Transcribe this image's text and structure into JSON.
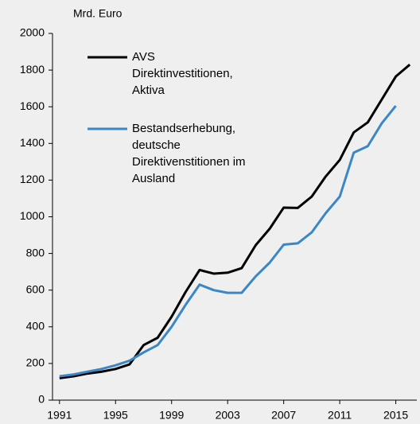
{
  "chart_data": {
    "type": "line",
    "y_label": "Mrd. Euro",
    "x": [
      1991,
      1992,
      1993,
      1994,
      1995,
      1996,
      1997,
      1998,
      1999,
      2000,
      2001,
      2002,
      2003,
      2004,
      2005,
      2006,
      2007,
      2008,
      2009,
      2010,
      2011,
      2012,
      2013,
      2014,
      2015,
      2016
    ],
    "series": [
      {
        "name": "AVS\nDirektinvestitionen,\nAktiva",
        "color": "#000000",
        "values": [
          120,
          130,
          145,
          155,
          170,
          195,
          300,
          340,
          455,
          590,
          710,
          690,
          695,
          720,
          845,
          935,
          1050,
          1048,
          1110,
          1220,
          1310,
          1460,
          1515,
          1640,
          1765,
          1830
        ]
      },
      {
        "name": "Bestandserhebung,\ndeutsche\nDirektivenstitionen im\nAusland",
        "color": "#3a87c8",
        "values": [
          130,
          140,
          155,
          170,
          190,
          215,
          260,
          300,
          400,
          520,
          630,
          600,
          585,
          585,
          675,
          750,
          848,
          855,
          915,
          1020,
          1110,
          1350,
          1385,
          1510,
          1605,
          null
        ]
      }
    ],
    "xlim": [
      1990.5,
      2016.5
    ],
    "xticks": [
      1991,
      1995,
      1999,
      2003,
      2007,
      2011,
      2015
    ],
    "ylim": [
      0,
      2000
    ],
    "yticks": [
      0,
      200,
      400,
      600,
      800,
      1000,
      1200,
      1400,
      1600,
      1800,
      2000
    ],
    "legend": "top-left"
  }
}
